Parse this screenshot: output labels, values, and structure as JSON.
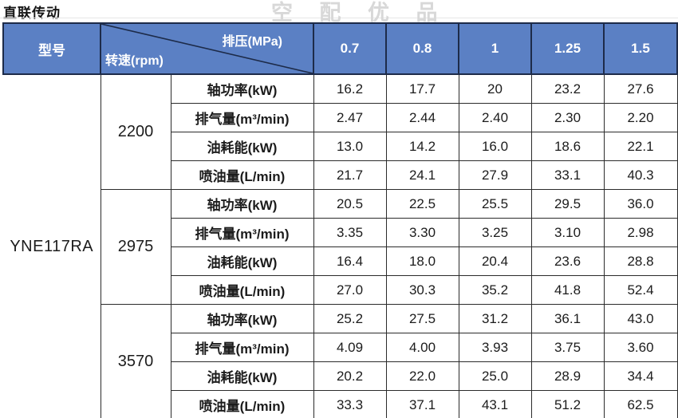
{
  "page": {
    "title": "直联传动",
    "watermark": "空 配 优 品"
  },
  "table": {
    "header": {
      "model_label": "型号",
      "diagonal": {
        "top_right": "排压(MPa)",
        "bottom_left": "转速(rpm)"
      },
      "pressure_columns": [
        "0.7",
        "0.8",
        "1",
        "1.25",
        "1.5"
      ]
    },
    "model": "YNE117RA",
    "groups": [
      {
        "rpm": "2200",
        "rows": [
          {
            "label": "轴功率(kW)",
            "values": [
              "16.2",
              "17.7",
              "20",
              "23.2",
              "27.6"
            ]
          },
          {
            "label": "排气量(m³/min)",
            "values": [
              "2.47",
              "2.44",
              "2.40",
              "2.30",
              "2.20"
            ]
          },
          {
            "label": "油耗能(kW)",
            "values": [
              "13.0",
              "14.2",
              "16.0",
              "18.6",
              "22.1"
            ]
          },
          {
            "label": "喷油量(L/min)",
            "values": [
              "21.7",
              "24.1",
              "27.9",
              "33.1",
              "40.3"
            ]
          }
        ]
      },
      {
        "rpm": "2975",
        "rows": [
          {
            "label": "轴功率(kW)",
            "values": [
              "20.5",
              "22.5",
              "25.5",
              "29.5",
              "36.0"
            ]
          },
          {
            "label": "排气量(m³/min)",
            "values": [
              "3.35",
              "3.30",
              "3.25",
              "3.10",
              "2.98"
            ]
          },
          {
            "label": "油耗能(kW)",
            "values": [
              "16.4",
              "18.0",
              "20.4",
              "23.6",
              "28.8"
            ]
          },
          {
            "label": "喷油量(L/min)",
            "values": [
              "27.0",
              "30.3",
              "35.2",
              "41.8",
              "52.4"
            ]
          }
        ]
      },
      {
        "rpm": "3570",
        "rows": [
          {
            "label": "轴功率(kW)",
            "values": [
              "25.2",
              "27.5",
              "31.2",
              "36.1",
              "43.0"
            ]
          },
          {
            "label": "排气量(m³/min)",
            "values": [
              "4.09",
              "4.00",
              "3.93",
              "3.75",
              "3.60"
            ]
          },
          {
            "label": "油耗能(kW)",
            "values": [
              "20.2",
              "22.0",
              "25.0",
              "28.9",
              "34.4"
            ]
          },
          {
            "label": "喷油量(L/min)",
            "values": [
              "33.3",
              "37.1",
              "43.1",
              "51.2",
              "62.5"
            ]
          }
        ]
      }
    ],
    "colors": {
      "header_bg": "#5b80c4",
      "header_text": "#ffffff",
      "header_border": "#1d2b49",
      "body_border": "#2b2b2b",
      "watermark": "#d8d8d8"
    }
  }
}
